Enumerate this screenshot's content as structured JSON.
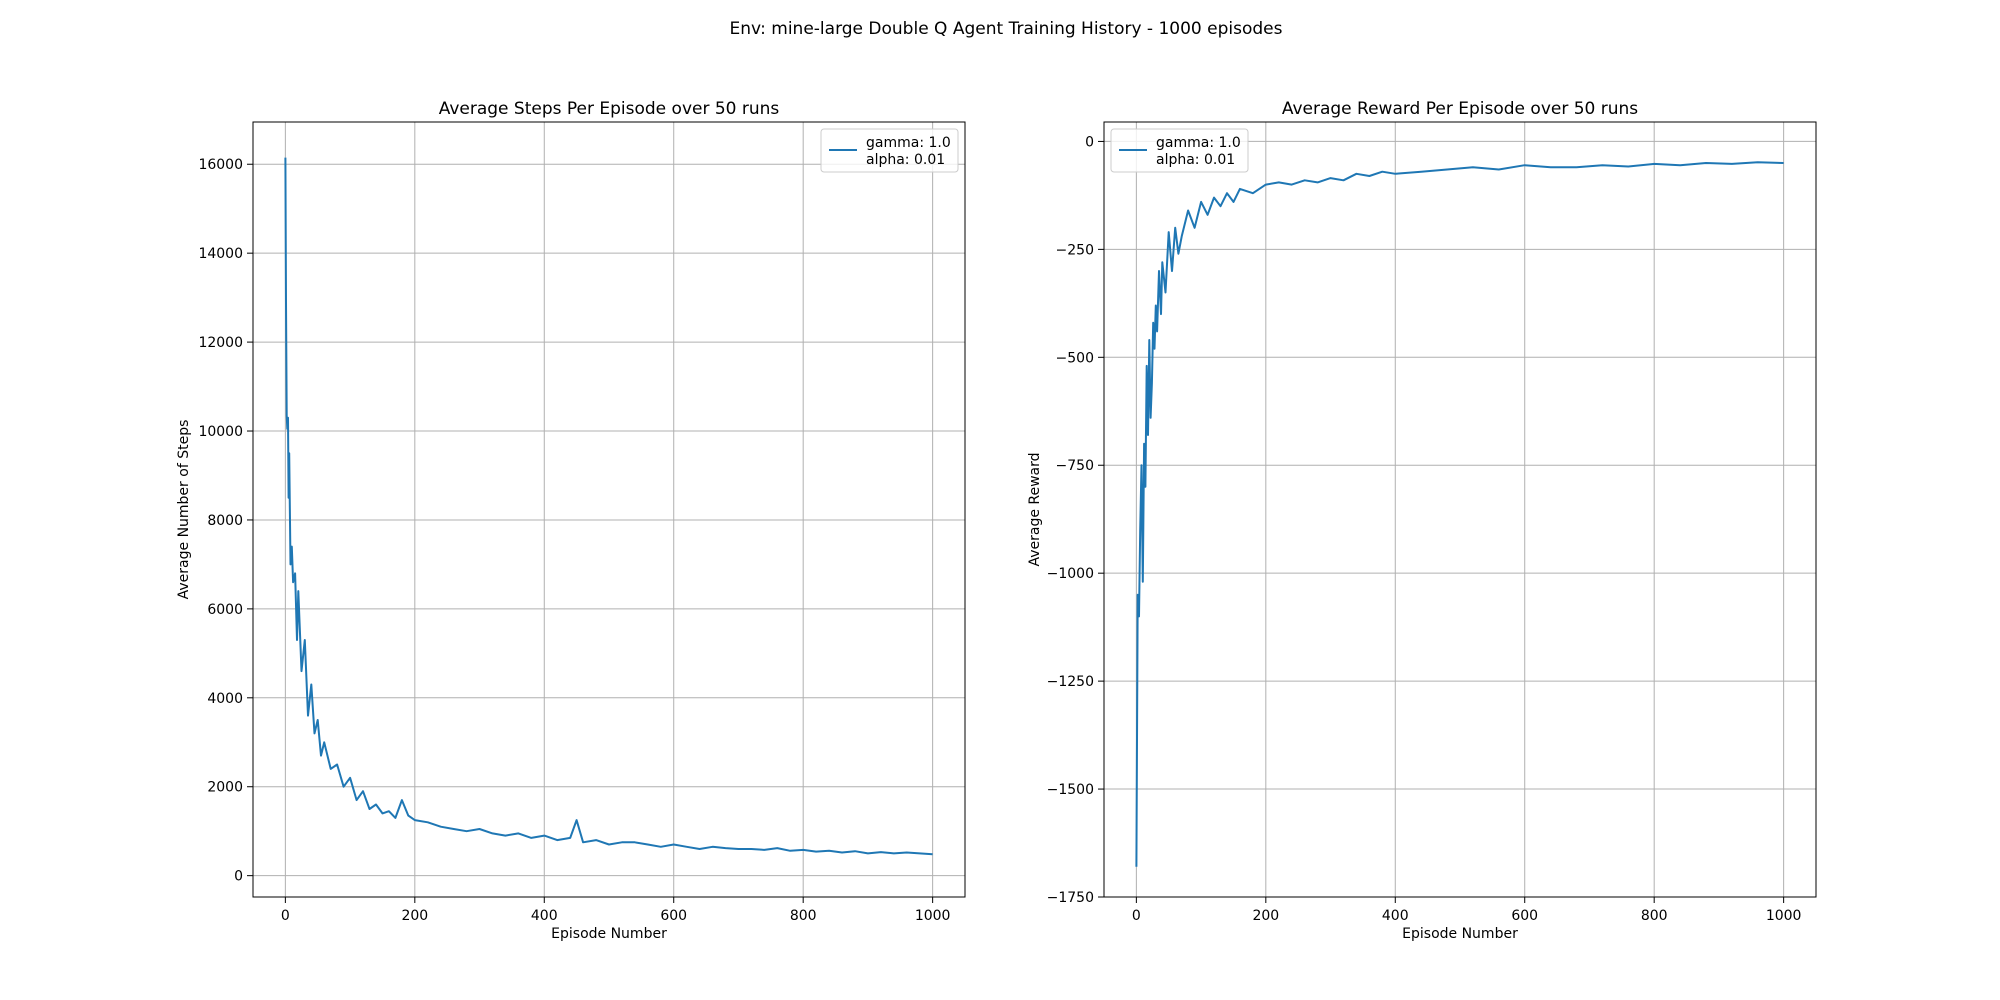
{
  "figure": {
    "suptitle": "Env: mine-large Double Q Agent Training History - 1000 episodes"
  },
  "colors": {
    "series": "#1f77b4",
    "grid": "#b0b0b0",
    "axes": "#000000",
    "legend_border": "#cccccc"
  },
  "chart_data": [
    {
      "type": "line",
      "title": "Average Steps Per Episode over 50 runs",
      "xlabel": "Episode Number",
      "ylabel": "Average Number of Steps",
      "xlim": [
        -50,
        1050
      ],
      "ylim": [
        -480,
        16950
      ],
      "xticks": [
        0,
        200,
        400,
        600,
        800,
        1000
      ],
      "yticks": [
        0,
        2000,
        4000,
        6000,
        8000,
        10000,
        12000,
        14000,
        16000
      ],
      "grid": true,
      "legend": {
        "position": "upper right",
        "entries": [
          "gamma: 1.0",
          "alpha: 0.01"
        ]
      },
      "series": [
        {
          "label_lines": [
            "gamma: 1.0",
            "alpha: 0.01"
          ],
          "x": [
            0,
            1,
            2,
            3,
            4,
            5,
            6,
            8,
            10,
            12,
            15,
            18,
            20,
            25,
            30,
            35,
            40,
            45,
            50,
            55,
            60,
            70,
            80,
            90,
            100,
            110,
            120,
            130,
            140,
            150,
            160,
            170,
            180,
            190,
            200,
            220,
            240,
            260,
            280,
            300,
            320,
            340,
            360,
            380,
            400,
            420,
            440,
            450,
            460,
            480,
            500,
            520,
            540,
            560,
            580,
            600,
            620,
            640,
            660,
            680,
            700,
            720,
            740,
            760,
            780,
            800,
            820,
            840,
            860,
            880,
            900,
            920,
            940,
            960,
            980,
            1000
          ],
          "y": [
            16150,
            12900,
            10350,
            10050,
            10300,
            8500,
            9500,
            7000,
            7400,
            6600,
            6800,
            5300,
            6400,
            4600,
            5300,
            3600,
            4300,
            3200,
            3500,
            2700,
            3000,
            2400,
            2500,
            2000,
            2200,
            1700,
            1900,
            1500,
            1600,
            1400,
            1450,
            1300,
            1700,
            1350,
            1250,
            1200,
            1100,
            1050,
            1000,
            1050,
            950,
            900,
            950,
            850,
            900,
            800,
            850,
            1250,
            750,
            800,
            700,
            750,
            750,
            700,
            650,
            700,
            650,
            600,
            650,
            620,
            600,
            600,
            580,
            620,
            560,
            580,
            540,
            560,
            520,
            550,
            500,
            530,
            500,
            520,
            500,
            480
          ]
        }
      ]
    },
    {
      "type": "line",
      "title": "Average Reward Per Episode over 50 runs",
      "xlabel": "Episode Number",
      "ylabel": "Average Reward",
      "xlim": [
        -50,
        1050
      ],
      "ylim": [
        -1750,
        45
      ],
      "xticks": [
        0,
        200,
        400,
        600,
        800,
        1000
      ],
      "yticks": [
        0,
        -250,
        -500,
        -750,
        -1000,
        -1250,
        -1500,
        -1750
      ],
      "grid": true,
      "legend": {
        "position": "upper left",
        "entries": [
          "gamma: 1.0",
          "alpha: 0.01"
        ]
      },
      "series": [
        {
          "label_lines": [
            "gamma: 1.0",
            "alpha: 0.01"
          ],
          "x": [
            0,
            2,
            4,
            6,
            8,
            10,
            12,
            14,
            16,
            18,
            20,
            22,
            24,
            26,
            28,
            30,
            32,
            35,
            38,
            40,
            45,
            50,
            55,
            60,
            65,
            70,
            80,
            90,
            100,
            110,
            120,
            130,
            140,
            150,
            160,
            180,
            200,
            220,
            240,
            260,
            280,
            300,
            320,
            340,
            360,
            380,
            400,
            440,
            480,
            520,
            560,
            600,
            640,
            680,
            720,
            760,
            800,
            840,
            880,
            920,
            960,
            1000
          ],
          "y": [
            -1680,
            -1050,
            -1100,
            -900,
            -750,
            -1020,
            -700,
            -800,
            -520,
            -680,
            -460,
            -640,
            -560,
            -420,
            -480,
            -380,
            -440,
            -300,
            -400,
            -280,
            -350,
            -210,
            -300,
            -200,
            -260,
            -220,
            -160,
            -200,
            -140,
            -170,
            -130,
            -150,
            -120,
            -140,
            -110,
            -120,
            -100,
            -95,
            -100,
            -90,
            -95,
            -85,
            -90,
            -75,
            -80,
            -70,
            -75,
            -70,
            -65,
            -60,
            -65,
            -55,
            -60,
            -60,
            -55,
            -58,
            -52,
            -55,
            -50,
            -52,
            -48,
            -50
          ]
        }
      ]
    }
  ]
}
